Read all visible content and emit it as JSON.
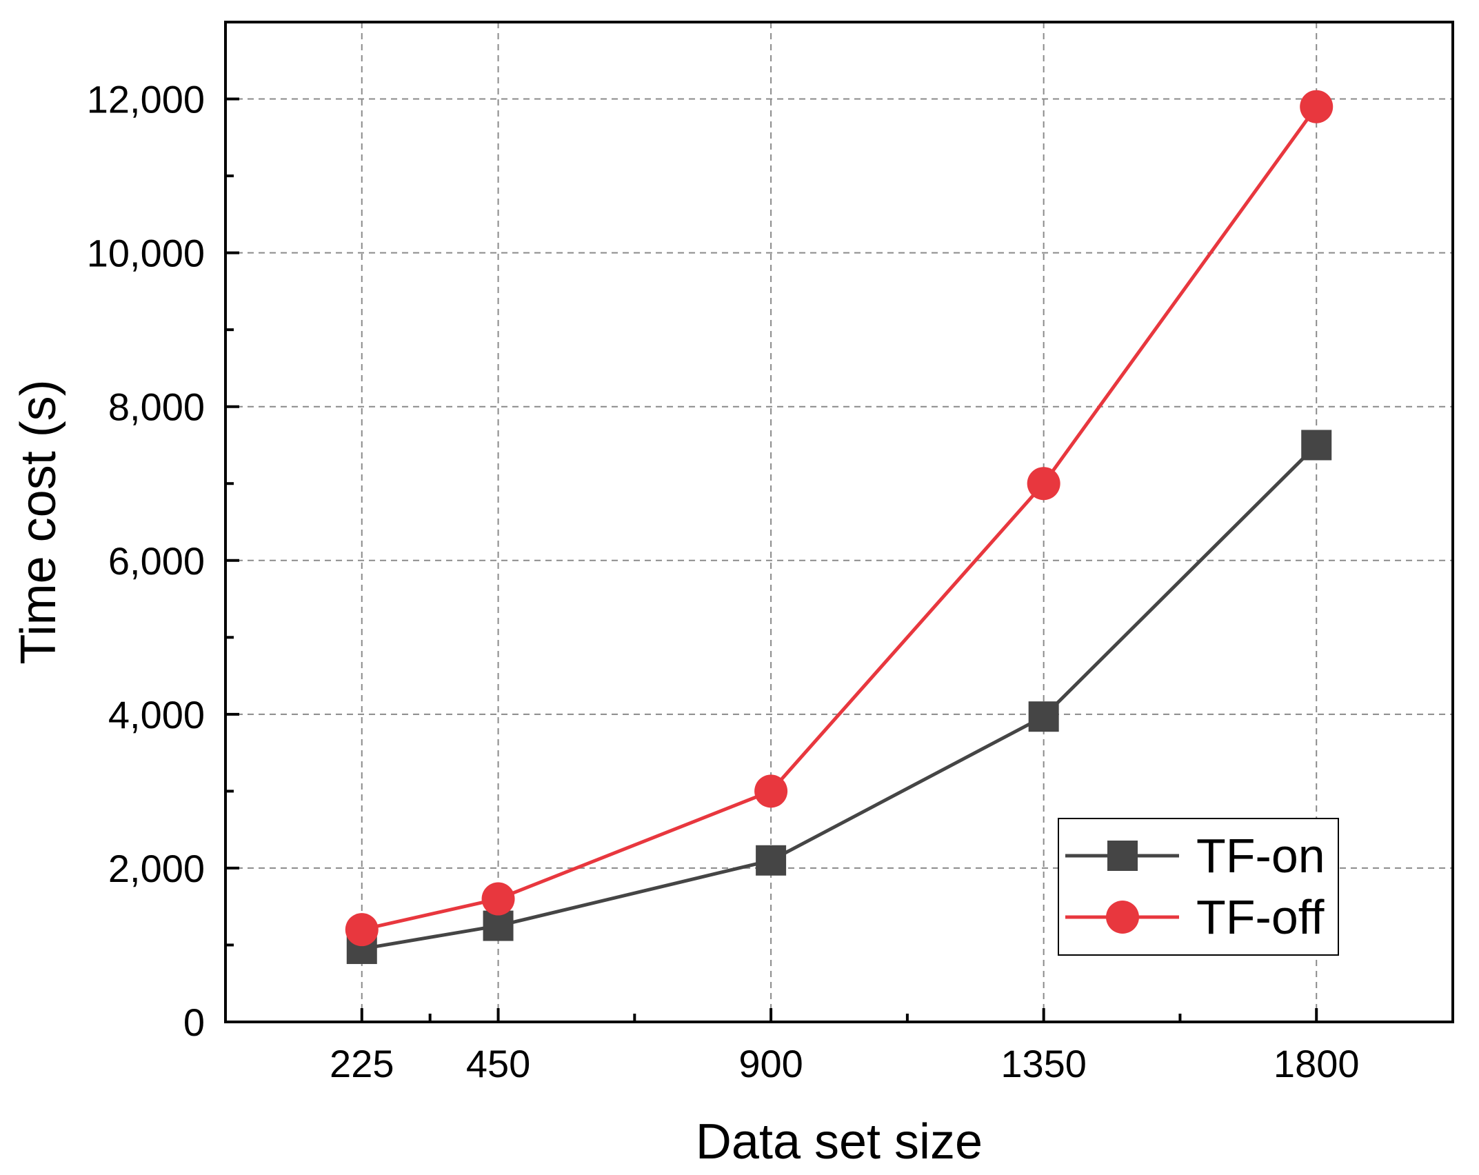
{
  "chart_data": {
    "type": "line",
    "xlabel": "Data set size",
    "ylabel": "Time cost (s)",
    "x": [
      225,
      450,
      900,
      1350,
      1800
    ],
    "x_ticks": [
      225,
      450,
      900,
      1350,
      1800
    ],
    "x_tick_labels": [
      "225",
      "450",
      "900",
      "1350",
      "1800"
    ],
    "xlim": [
      0,
      2025
    ],
    "ylim": [
      0,
      13000
    ],
    "y_ticks": [
      0,
      2000,
      4000,
      6000,
      8000,
      10000,
      12000
    ],
    "y_tick_labels": [
      "0",
      "2,000",
      "4,000",
      "6,000",
      "8,000",
      "10,000",
      "12,000"
    ],
    "grid": true,
    "legend_position": "bottom-right",
    "series": [
      {
        "name": "TF-on",
        "marker": "square",
        "color": "#454545",
        "values": [
          950,
          1250,
          2100,
          3970,
          7500
        ]
      },
      {
        "name": "TF-off",
        "marker": "circle",
        "color": "#e8373e",
        "values": [
          1200,
          1600,
          3000,
          7000,
          11900
        ]
      }
    ]
  }
}
